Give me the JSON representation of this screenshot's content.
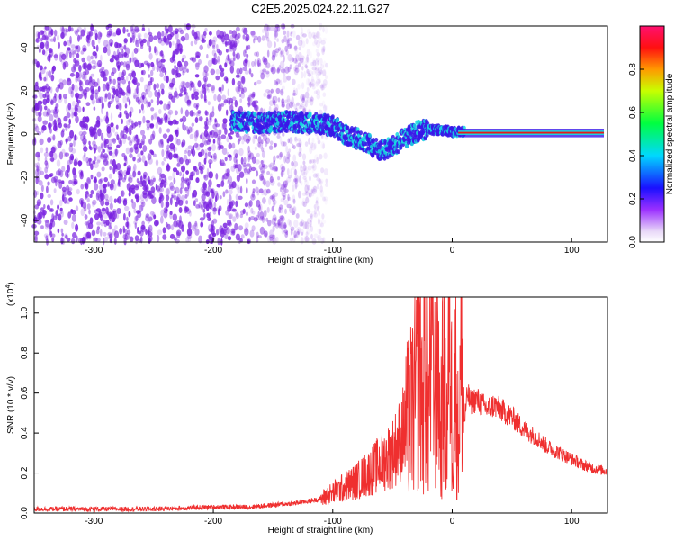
{
  "figure_title": "C2E5.2025.024.22.11.G27",
  "colors": {
    "snr_line": "#ef2f2f",
    "axis": "#000000",
    "background_noise": "#7a22e0",
    "ridge_low": "#3a18e8",
    "ridge_mid": "#18d8e0",
    "ridge_high": "#e81818"
  },
  "chart_data": [
    {
      "id": "spectrogram",
      "type": "heatmap",
      "title": "C2E5.2025.024.22.11.G27",
      "xlabel": "Height of straight line (km)",
      "ylabel": "Frequency (Hz)",
      "xlim": [
        -350,
        130
      ],
      "ylim": [
        -50,
        50
      ],
      "xticks": [
        -300,
        -200,
        -100,
        0,
        100
      ],
      "xtick_labels": [
        "-300",
        "-200",
        "-100",
        "0",
        "100"
      ],
      "yticks": [
        -40,
        -20,
        0,
        20,
        40
      ],
      "ytick_labels": [
        "-40",
        "-20",
        "0",
        "20",
        "40"
      ],
      "colorbar": {
        "label": "Normalized spectral amplitude",
        "range": [
          0,
          1
        ],
        "ticks": [
          0.0,
          0.2,
          0.4,
          0.6,
          0.8
        ],
        "tick_labels": [
          "0.0",
          "0.2",
          "0.4",
          "0.6",
          "0.8"
        ]
      },
      "noise_region": {
        "x_range": [
          -350,
          -120
        ],
        "y_range": [
          -50,
          50
        ],
        "amplitude": 0.1
      },
      "ridge": [
        {
          "x": -185,
          "y": 6,
          "amplitude": 0.25
        },
        {
          "x": -160,
          "y": 5,
          "amplitude": 0.3
        },
        {
          "x": -140,
          "y": 6,
          "amplitude": 0.35
        },
        {
          "x": -120,
          "y": 5,
          "amplitude": 0.4
        },
        {
          "x": -100,
          "y": 4,
          "amplitude": 0.4
        },
        {
          "x": -90,
          "y": 0,
          "amplitude": 0.4
        },
        {
          "x": -75,
          "y": -3,
          "amplitude": 0.4
        },
        {
          "x": -60,
          "y": -8,
          "amplitude": 0.45
        },
        {
          "x": -50,
          "y": -6,
          "amplitude": 0.45
        },
        {
          "x": -40,
          "y": -2,
          "amplitude": 0.5
        },
        {
          "x": -30,
          "y": 1,
          "amplitude": 0.55
        },
        {
          "x": -20,
          "y": 2,
          "amplitude": 0.7
        },
        {
          "x": -10,
          "y": 2,
          "amplitude": 0.8
        },
        {
          "x": 0,
          "y": 1,
          "amplitude": 0.9
        },
        {
          "x": 10,
          "y": 1,
          "amplitude": 0.95
        },
        {
          "x": 60,
          "y": 0.5,
          "amplitude": 0.95
        },
        {
          "x": 127,
          "y": 0.5,
          "amplitude": 0.95
        }
      ]
    },
    {
      "id": "snr",
      "type": "line",
      "xlabel": "Height of straight line (km)",
      "ylabel": "SNR (10 * v/v)",
      "y_scale_label": "(x10",
      "y_scale_exp": "4",
      "y_scale_close": ")",
      "xlim": [
        -350,
        130
      ],
      "ylim": [
        0,
        1.08
      ],
      "xticks": [
        -300,
        -200,
        -100,
        0,
        100
      ],
      "xtick_labels": [
        "-300",
        "-200",
        "-100",
        "0",
        "100"
      ],
      "yticks": [
        0.0,
        0.2,
        0.4,
        0.6,
        0.8,
        1.0
      ],
      "ytick_labels": [
        "0.0",
        "0.2",
        "0.4",
        "0.6",
        "0.8",
        "1.0"
      ],
      "series": [
        {
          "name": "SNR",
          "x": [
            -350,
            -300,
            -250,
            -200,
            -170,
            -150,
            -130,
            -110,
            -100,
            -90,
            -80,
            -70,
            -60,
            -50,
            -45,
            -40,
            -35,
            -30,
            -27,
            -25,
            -22,
            -20,
            -17,
            -15,
            -12,
            -10,
            -7,
            -5,
            -2,
            0,
            3,
            5,
            8,
            10,
            13,
            15,
            20,
            25,
            30,
            35,
            40,
            50,
            60,
            70,
            80,
            90,
            100,
            110,
            120,
            130
          ],
          "y": [
            0.02,
            0.02,
            0.02,
            0.03,
            0.03,
            0.04,
            0.05,
            0.07,
            0.1,
            0.13,
            0.16,
            0.2,
            0.25,
            0.3,
            0.35,
            0.42,
            0.5,
            0.6,
            0.95,
            0.5,
            0.85,
            0.45,
            1.05,
            0.55,
            0.9,
            0.35,
            0.75,
            0.3,
            1.06,
            0.4,
            0.7,
            0.35,
            0.85,
            0.45,
            0.6,
            0.55,
            0.57,
            0.54,
            0.52,
            0.54,
            0.52,
            0.48,
            0.42,
            0.38,
            0.33,
            0.3,
            0.27,
            0.24,
            0.22,
            0.21
          ]
        }
      ]
    }
  ]
}
